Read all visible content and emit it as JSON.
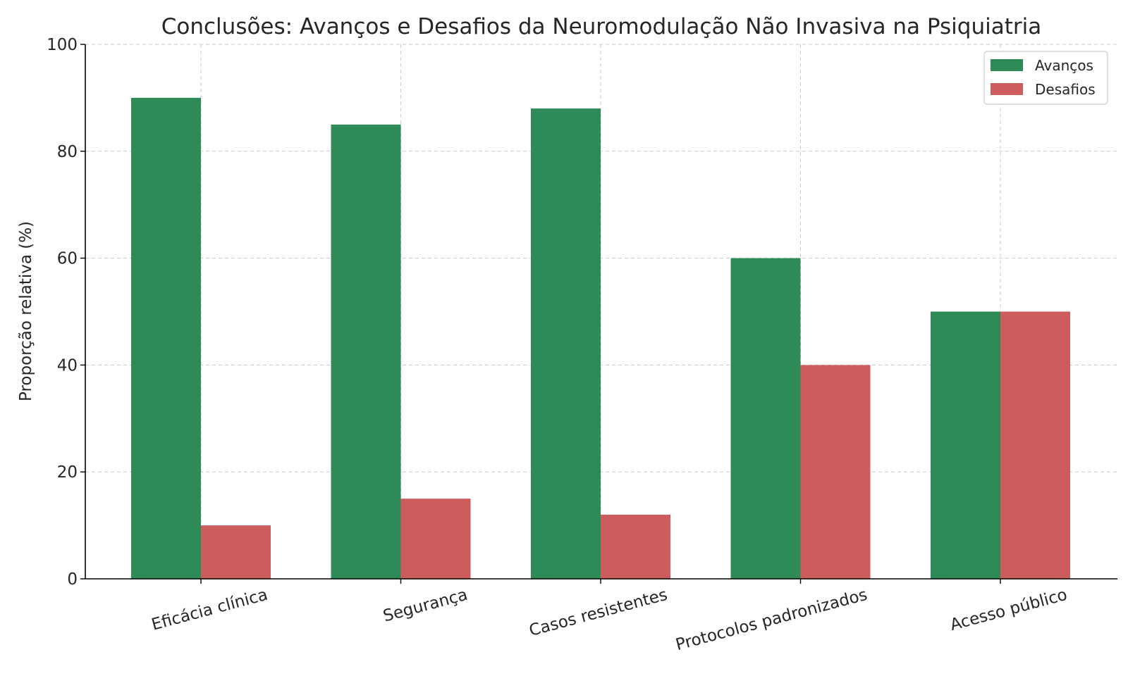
{
  "chart_data": {
    "type": "bar",
    "title": "Conclusões: Avanços e Desafios da Neuromodulação Não Invasiva na Psiquiatria",
    "xlabel": "",
    "ylabel": "Proporção relativa (%)",
    "categories": [
      "Eficácia clínica",
      "Segurança",
      "Casos resistentes",
      "Protocolos padronizados",
      "Acesso público"
    ],
    "series": [
      {
        "name": "Avanços",
        "values": [
          90,
          85,
          88,
          60,
          50
        ],
        "color": "#2e8b57"
      },
      {
        "name": "Desafios",
        "values": [
          10,
          15,
          12,
          40,
          50
        ],
        "color": "#cd5c5c"
      }
    ],
    "ylim": [
      0,
      100
    ],
    "yticks": [
      0,
      20,
      40,
      60,
      80,
      100
    ],
    "grid": true,
    "legend_position": "top-right"
  }
}
